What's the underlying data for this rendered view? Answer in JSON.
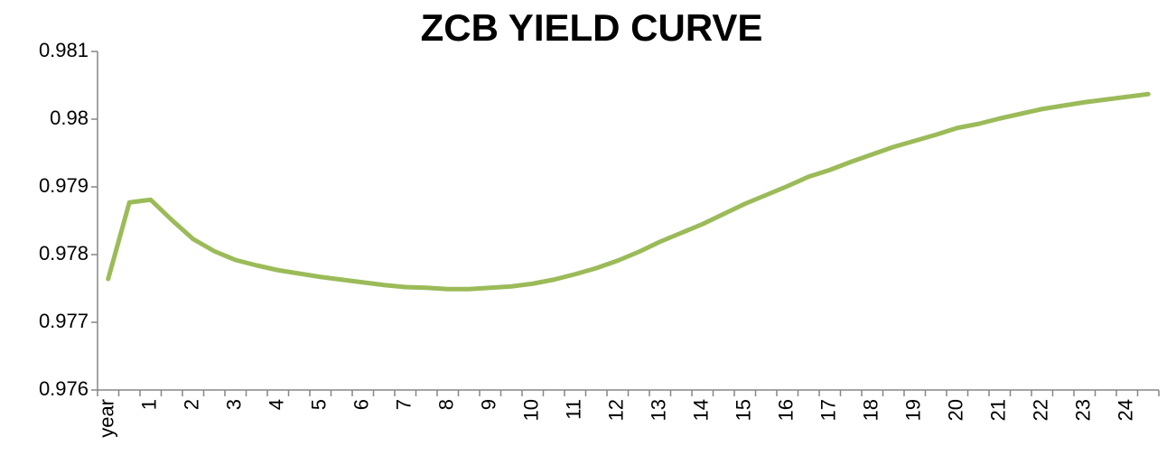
{
  "chart_data": {
    "type": "line",
    "title": "ZCB YIELD CURVE",
    "categories": [
      "year",
      null,
      "1",
      null,
      "2",
      null,
      "3",
      null,
      "4",
      null,
      "5",
      null,
      "6",
      null,
      "7",
      null,
      "8",
      null,
      "9",
      null,
      "10",
      null,
      "11",
      null,
      "12",
      null,
      "13",
      null,
      "14",
      null,
      "15",
      null,
      "16",
      null,
      "17",
      null,
      "18",
      null,
      "19",
      null,
      "20",
      null,
      "21",
      null,
      "22",
      null,
      "23",
      null,
      "24",
      null
    ],
    "values": [
      0.97764,
      0.97877,
      0.97881,
      0.97851,
      0.97823,
      0.97805,
      0.97792,
      0.97784,
      0.97777,
      0.97772,
      0.97767,
      0.97763,
      0.97759,
      0.97755,
      0.97752,
      0.97751,
      0.97749,
      0.97749,
      0.97751,
      0.97753,
      0.97757,
      0.97763,
      0.97771,
      0.9778,
      0.97791,
      0.97804,
      0.97819,
      0.97832,
      0.97845,
      0.9786,
      0.97875,
      0.97888,
      0.97901,
      0.97915,
      0.97925,
      0.97937,
      0.97948,
      0.97959,
      0.97968,
      0.97977,
      0.97987,
      0.97993,
      0.98001,
      0.98008,
      0.98015,
      0.9802,
      0.98025,
      0.98029,
      0.98033,
      0.98037
    ],
    "color": "#9bbb59",
    "ylim": [
      0.976,
      0.981
    ],
    "yticks": [
      0.976,
      0.977,
      0.978,
      0.979,
      0.98,
      0.981
    ],
    "grid": false
  }
}
